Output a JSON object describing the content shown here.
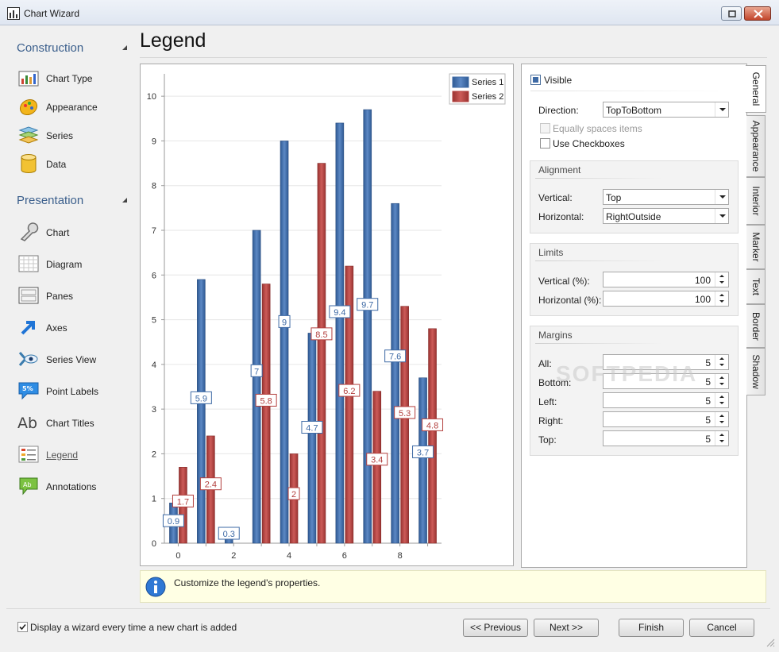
{
  "window": {
    "title": "Chart Wizard"
  },
  "page_title": "Legend",
  "nav": {
    "groups": [
      {
        "title": "Construction",
        "items": [
          {
            "label": "Chart Type",
            "icon": "chart-type-icon"
          },
          {
            "label": "Appearance",
            "icon": "appearance-icon"
          },
          {
            "label": "Series",
            "icon": "series-icon"
          },
          {
            "label": "Data",
            "icon": "data-icon"
          }
        ]
      },
      {
        "title": "Presentation",
        "items": [
          {
            "label": "Chart",
            "icon": "wrench-icon"
          },
          {
            "label": "Diagram",
            "icon": "diagram-icon"
          },
          {
            "label": "Panes",
            "icon": "panes-icon"
          },
          {
            "label": "Axes",
            "icon": "axes-arrow-icon"
          },
          {
            "label": "Series View",
            "icon": "series-view-icon"
          },
          {
            "label": "Point Labels",
            "icon": "point-labels-icon"
          },
          {
            "label": "Chart Titles",
            "icon": "chart-titles-icon"
          },
          {
            "label": "Legend",
            "icon": "legend-icon",
            "active": true
          },
          {
            "label": "Annotations",
            "icon": "annotations-icon"
          }
        ]
      }
    ]
  },
  "chart_data": {
    "type": "bar",
    "x": [
      0,
      1,
      2,
      3,
      4,
      5,
      6,
      7,
      8,
      9
    ],
    "series": [
      {
        "name": "Series 1",
        "color": "#3e6aa5",
        "values": [
          0.9,
          5.9,
          0.3,
          7,
          9,
          4.7,
          9.4,
          9.7,
          7.6,
          3.7
        ]
      },
      {
        "name": "Series 2",
        "color": "#b3403e",
        "values": [
          1.7,
          2.4,
          null,
          5.8,
          2,
          8.5,
          6.2,
          3.4,
          5.3,
          4.8
        ]
      }
    ],
    "x_ticks": [
      "0",
      "2",
      "4",
      "6",
      "8"
    ],
    "y_ticks": [
      "0",
      "1",
      "2",
      "3",
      "4",
      "5",
      "6",
      "7",
      "8",
      "9",
      "10"
    ],
    "ylim": [
      0,
      10.5
    ],
    "grid": true,
    "legend": "top-right",
    "data_labels": true
  },
  "props": {
    "visible_label": "Visible",
    "direction_label": "Direction:",
    "direction_value": "TopToBottom",
    "equally_spaces_label": "Equally spaces items",
    "use_checkboxes_label": "Use Checkboxes",
    "alignment": {
      "title": "Alignment",
      "vertical_label": "Vertical:",
      "vertical_value": "Top",
      "horizontal_label": "Horizontal:",
      "horizontal_value": "RightOutside"
    },
    "limits": {
      "title": "Limits",
      "vertical_label": "Vertical (%):",
      "vertical_value": "100",
      "horizontal_label": "Horizontal (%):",
      "horizontal_value": "100"
    },
    "margins": {
      "title": "Margins",
      "all_label": "All:",
      "all_value": "5",
      "bottom_label": "Bottom:",
      "bottom_value": "5",
      "left_label": "Left:",
      "left_value": "5",
      "right_label": "Right:",
      "right_value": "5",
      "top_label": "Top:",
      "top_value": "5"
    },
    "tabs": [
      "General",
      "Appearance",
      "Interior",
      "Marker",
      "Text",
      "Border",
      "Shadow"
    ]
  },
  "watermark": "SOFTPEDIA",
  "info": {
    "message": "Customize the legend's properties."
  },
  "footer": {
    "checkbox_label": "Display a wizard every time a new chart is added",
    "previous": "<< Previous",
    "next": "Next >>",
    "finish": "Finish",
    "cancel": "Cancel"
  }
}
